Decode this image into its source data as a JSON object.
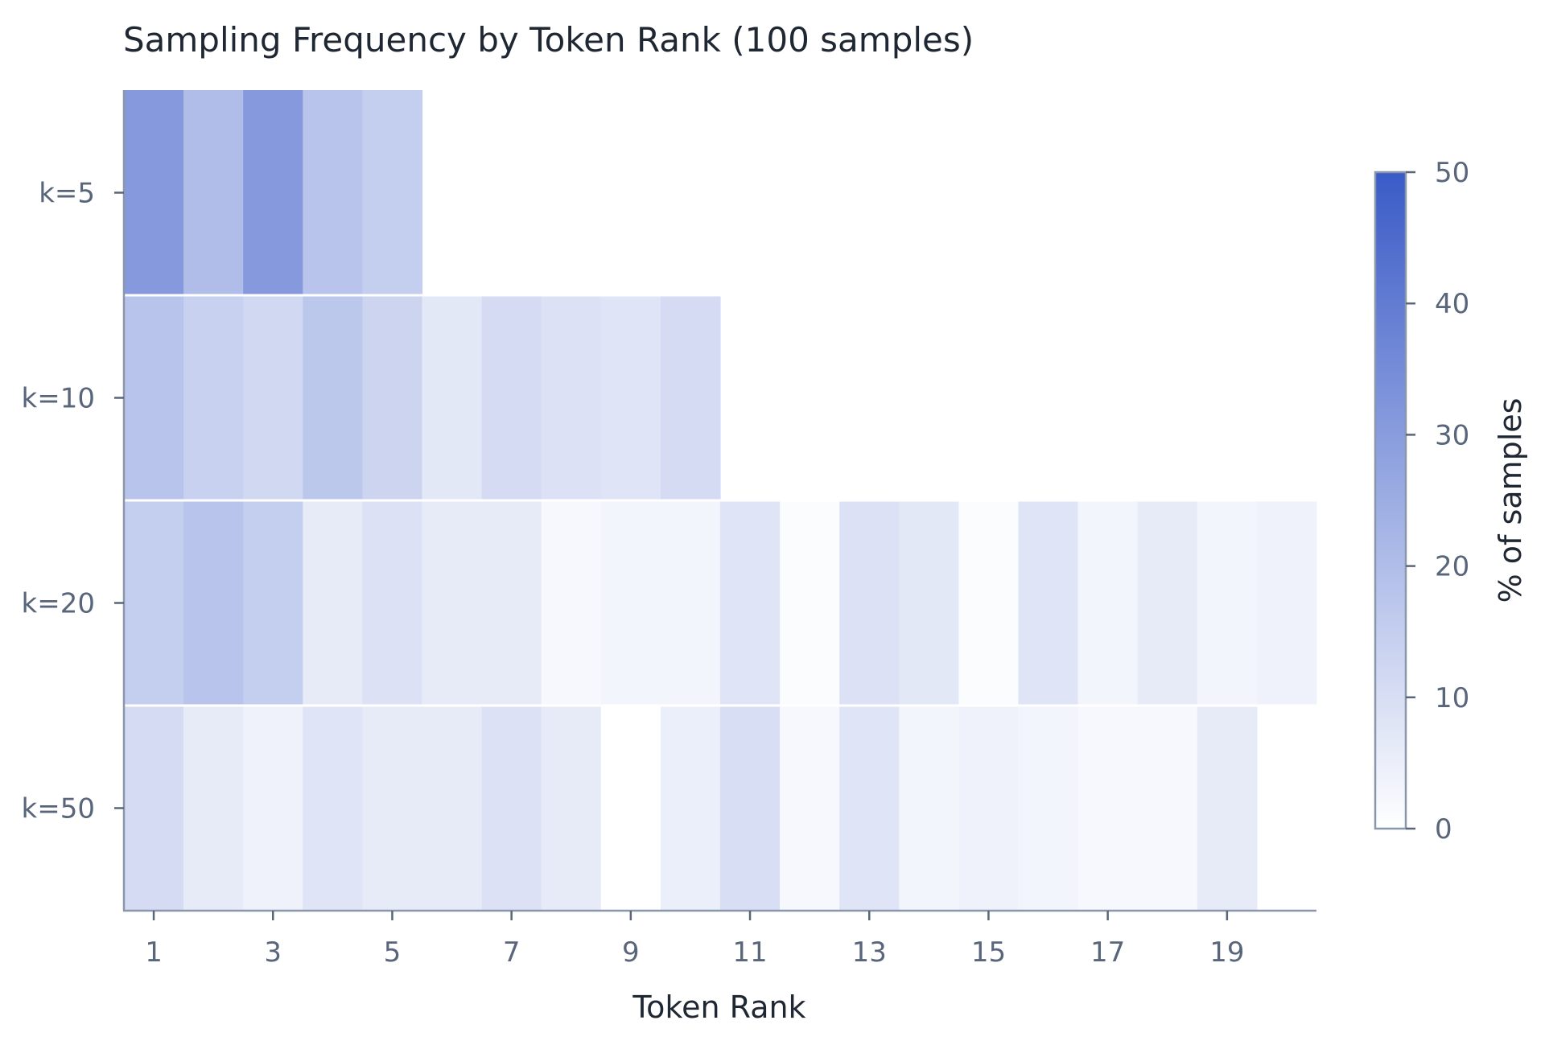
{
  "chart_data": {
    "type": "heatmap",
    "title": "Sampling Frequency by Token Rank (100 samples)",
    "xlabel": "Token Rank",
    "ylabel": "",
    "rows": [
      "k=5",
      "k=10",
      "k=20",
      "k=50"
    ],
    "x": [
      1,
      2,
      3,
      4,
      5,
      6,
      7,
      8,
      9,
      10,
      11,
      12,
      13,
      14,
      15,
      16,
      17,
      18,
      19,
      20
    ],
    "x_tick_labels": [
      "1",
      "3",
      "5",
      "7",
      "9",
      "11",
      "13",
      "15",
      "17",
      "19"
    ],
    "values": [
      [
        31,
        20,
        31,
        18,
        15,
        null,
        null,
        null,
        null,
        null,
        null,
        null,
        null,
        null,
        null,
        null,
        null,
        null,
        null,
        null
      ],
      [
        18,
        14,
        12,
        17,
        13,
        7,
        11,
        9,
        8,
        11,
        null,
        null,
        null,
        null,
        null,
        null,
        null,
        null,
        null,
        null
      ],
      [
        15,
        18,
        15,
        6,
        9,
        6,
        6,
        2,
        3,
        3,
        8,
        1,
        9,
        7,
        1,
        8,
        3,
        6,
        3,
        4
      ],
      [
        11,
        6,
        4,
        8,
        6,
        6,
        9,
        6,
        0,
        5,
        10,
        2,
        8,
        3,
        4,
        3,
        2,
        2,
        6,
        null
      ]
    ],
    "colorbar": {
      "label": "% of samples",
      "min": 0,
      "max": 50,
      "ticks": [
        0,
        10,
        20,
        30,
        40,
        50
      ],
      "color_min": "#ffffff",
      "color_max": "#3a5bc7"
    },
    "colors": {
      "axis": "#8a97ab",
      "text": "#59657a",
      "title": "#1f2733"
    }
  }
}
